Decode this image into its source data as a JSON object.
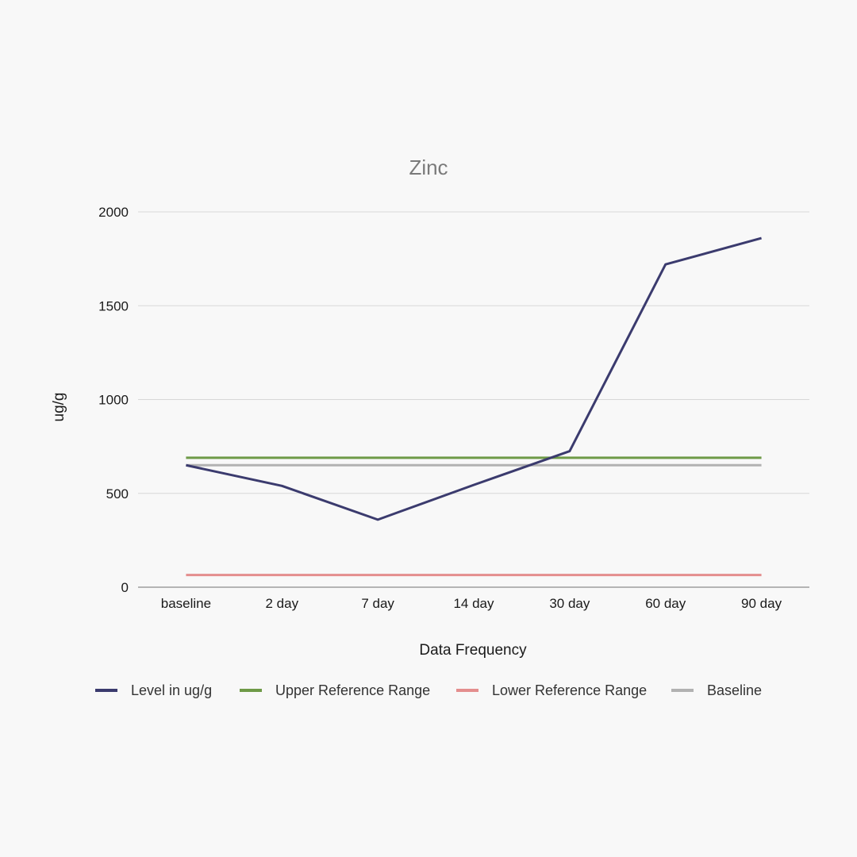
{
  "chart_data": {
    "type": "line",
    "title": "Zinc",
    "xlabel": "Data Frequency",
    "ylabel": "ug/g",
    "categories": [
      "baseline",
      "2 day",
      "7 day",
      "14 day",
      "30 day",
      "60 day",
      "90 day"
    ],
    "ylim": [
      0,
      2000
    ],
    "yticks": [
      0,
      500,
      1000,
      1500,
      2000
    ],
    "ytick_labels": [
      "0",
      "500",
      "1000",
      "1500",
      "2000"
    ],
    "grid": true,
    "legend_position": "bottom",
    "series": [
      {
        "name": "Level in ug/g",
        "color": "#3b3b6e",
        "values": [
          650,
          540,
          360,
          545,
          725,
          1720,
          1860
        ]
      },
      {
        "name": "Upper Reference Range",
        "color": "#6e9a47",
        "values": [
          690,
          690,
          690,
          690,
          690,
          690,
          690
        ]
      },
      {
        "name": "Lower Reference Range",
        "color": "#e48e8e",
        "values": [
          65,
          65,
          65,
          65,
          65,
          65,
          65
        ]
      },
      {
        "name": "Baseline",
        "color": "#b2b2b2",
        "values": [
          650,
          650,
          650,
          650,
          650,
          650,
          650
        ]
      }
    ]
  }
}
